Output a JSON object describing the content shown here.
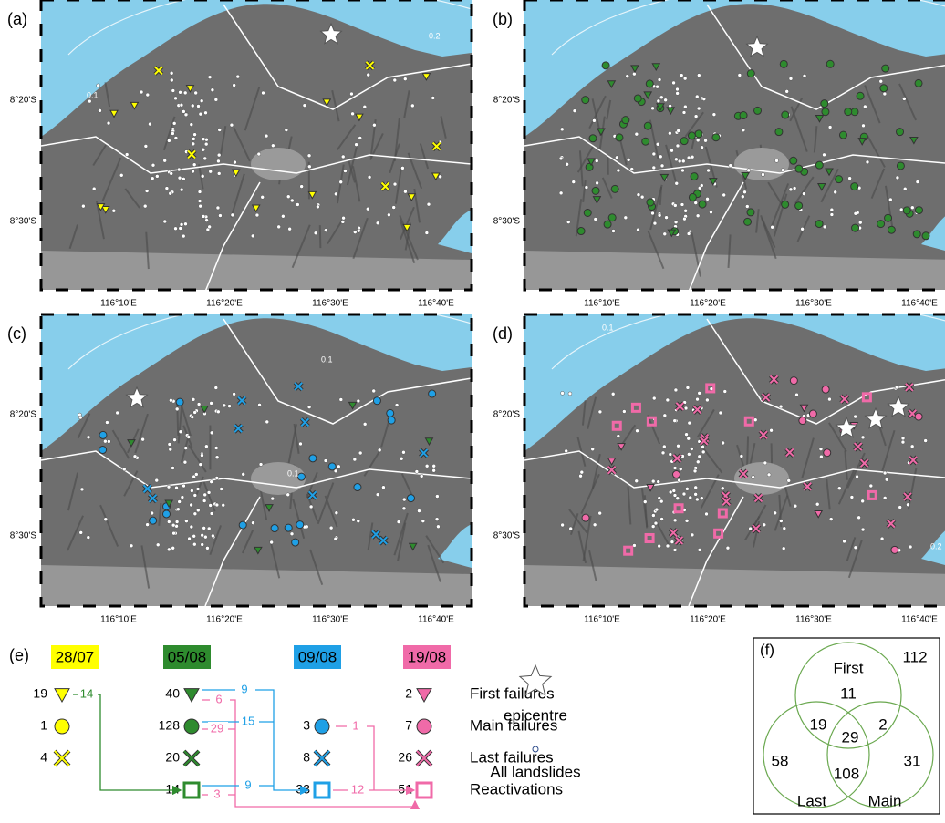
{
  "panels": [
    {
      "label": "(a)",
      "contour_labels": [
        "0.2",
        "0.1"
      ]
    },
    {
      "label": "(b)",
      "contour_labels": []
    },
    {
      "label": "(c)",
      "contour_labels": [
        "0.1",
        "0.1"
      ]
    },
    {
      "label": "(d)",
      "contour_labels": [
        "0.1",
        "0.2"
      ]
    }
  ],
  "map_axes": {
    "x_ticks": [
      "116°10'E",
      "116°20'E",
      "116°30'E",
      "116°40'E"
    ],
    "y_ticks": [
      "8°20'S",
      "8°30'S"
    ]
  },
  "legend": {
    "label": "(e)",
    "columns": [
      {
        "date": "28/07",
        "first": 19,
        "main": 1,
        "last": 4
      },
      {
        "date": "05/08",
        "first": 40,
        "main": 128,
        "last": 20,
        "reactivations": 14
      },
      {
        "date": "09/08",
        "main": 3,
        "last": 8,
        "reactivations": 33
      },
      {
        "date": "19/08",
        "first": 2,
        "main": 7,
        "last": 26,
        "reactivations": 51
      }
    ],
    "row_labels": [
      "First failures",
      "Main failures",
      "Last failures",
      "Reactivations"
    ],
    "flows": [
      14,
      9,
      6,
      15,
      29,
      9,
      3,
      1,
      12
    ],
    "symbols": [
      "epicentre",
      "All landslides"
    ]
  },
  "venn": {
    "label": "(f)",
    "sets": [
      "First",
      "Last",
      "Main"
    ],
    "outside": 112,
    "first_only": 11,
    "first_last": 19,
    "all_three": 29,
    "first_main": 2,
    "last_only": 58,
    "last_main": 108,
    "main_only": 31
  }
}
